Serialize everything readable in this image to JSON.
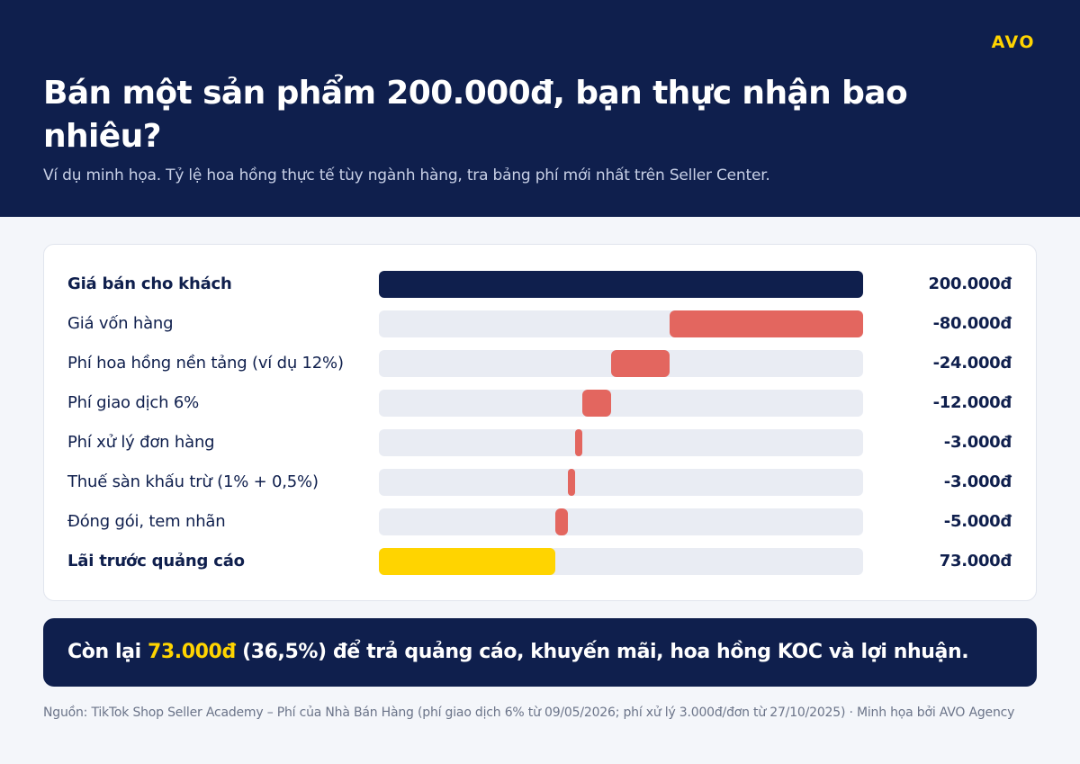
{
  "brand": "AVO",
  "header": {
    "title": "Bán một sản phẩm 200.000đ, bạn thực nhận bao nhiêu?",
    "subtitle": "Ví dụ minh họa. Tỷ lệ hoa hồng thực tế tùy ngành hàng, tra bảng phí mới nhất trên Seller Center."
  },
  "colors": {
    "navy": "#0f1f4d",
    "red": "#e3665f",
    "yellow": "#ffd400",
    "track": "#e9ecf3"
  },
  "chart_data": {
    "type": "bar",
    "subtype": "waterfall",
    "unit": "đ",
    "total": 200000,
    "rows": [
      {
        "label": "Giá bán cho khách",
        "display": "200.000đ",
        "value": 200000,
        "kind": "total",
        "bold": true
      },
      {
        "label": "Giá vốn hàng",
        "display": "-80.000đ",
        "value": -80000,
        "kind": "deduction",
        "bold": false
      },
      {
        "label": "Phí hoa hồng nền tảng (ví dụ 12%)",
        "display": "-24.000đ",
        "value": -24000,
        "kind": "deduction",
        "bold": false
      },
      {
        "label": "Phí giao dịch 6%",
        "display": "-12.000đ",
        "value": -12000,
        "kind": "deduction",
        "bold": false
      },
      {
        "label": "Phí xử lý đơn hàng",
        "display": "-3.000đ",
        "value": -3000,
        "kind": "deduction",
        "bold": false
      },
      {
        "label": "Thuế sàn khấu trừ (1% + 0,5%)",
        "display": "-3.000đ",
        "value": -3000,
        "kind": "deduction",
        "bold": false
      },
      {
        "label": "Đóng gói, tem nhãn",
        "display": "-5.000đ",
        "value": -5000,
        "kind": "deduction",
        "bold": false
      },
      {
        "label": "Lãi trước quảng cáo",
        "display": "73.000đ",
        "value": 73000,
        "kind": "result",
        "bold": true
      }
    ]
  },
  "summary": {
    "prefix": "Còn lại ",
    "highlight": "73.000đ",
    "suffix": " (36,5%) để trả quảng cáo, khuyến mãi, hoa hồng KOC và lợi nhuận."
  },
  "source": "Nguồn: TikTok Shop Seller Academy – Phí của Nhà Bán Hàng (phí giao dịch 6% từ 09/05/2026; phí xử lý 3.000đ/đơn từ 27/10/2025) · Minh họa bởi AVO Agency"
}
